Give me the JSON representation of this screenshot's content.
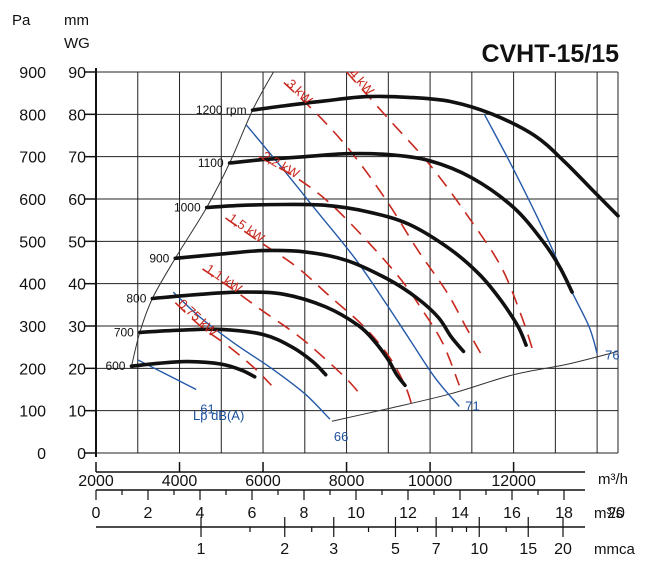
{
  "chart_data": {
    "type": "line",
    "title": "CVHT-15/15",
    "ylabel_left": "Pa",
    "ylabel_right_top": "mm",
    "ylabel_right_bottom": "WG",
    "x_primary": {
      "unit": "m³/h",
      "range": [
        2000,
        14500
      ],
      "ticks": [
        "2000",
        "4000",
        "6000",
        "8000",
        "10000",
        "12000"
      ]
    },
    "x_secondary": {
      "unit": "m³/s",
      "ticks": [
        "0",
        "2",
        "4",
        "6",
        "8",
        "10",
        "12",
        "14",
        "16",
        "18",
        "20"
      ]
    },
    "x_tertiary": {
      "unit": "mmca",
      "ticks": [
        "1",
        "2",
        "3",
        "5",
        "7",
        "10",
        "15",
        "20"
      ]
    },
    "y_pa": {
      "range": [
        0,
        900
      ],
      "ticks": [
        "0",
        "100",
        "200",
        "300",
        "400",
        "500",
        "600",
        "700",
        "800",
        "900"
      ]
    },
    "y_mmwg": {
      "ticks": [
        "0",
        "10",
        "20",
        "30",
        "40",
        "50",
        "60",
        "70",
        "80",
        "90"
      ]
    },
    "grid": true,
    "speed_curves": [
      {
        "label": "600",
        "points": [
          [
            2850,
            205
          ],
          [
            3500,
            212
          ],
          [
            4200,
            216
          ],
          [
            5000,
            210
          ],
          [
            5500,
            195
          ],
          [
            5800,
            180
          ]
        ]
      },
      {
        "label": "700",
        "points": [
          [
            3050,
            285
          ],
          [
            4000,
            290
          ],
          [
            5000,
            292
          ],
          [
            6000,
            280
          ],
          [
            6700,
            250
          ],
          [
            7200,
            215
          ],
          [
            7500,
            185
          ]
        ]
      },
      {
        "label": "800",
        "points": [
          [
            3350,
            365
          ],
          [
            4500,
            375
          ],
          [
            5500,
            380
          ],
          [
            6500,
            375
          ],
          [
            7500,
            345
          ],
          [
            8300,
            300
          ],
          [
            8700,
            260
          ],
          [
            9000,
            220
          ],
          [
            9200,
            185
          ],
          [
            9400,
            160
          ]
        ]
      },
      {
        "label": "900",
        "points": [
          [
            3900,
            460
          ],
          [
            5000,
            470
          ],
          [
            6000,
            478
          ],
          [
            7000,
            475
          ],
          [
            8000,
            455
          ],
          [
            9000,
            410
          ],
          [
            9700,
            365
          ],
          [
            10200,
            320
          ],
          [
            10500,
            275
          ],
          [
            10800,
            240
          ]
        ]
      },
      {
        "label": "1000",
        "points": [
          [
            4650,
            580
          ],
          [
            5500,
            585
          ],
          [
            6500,
            587
          ],
          [
            7500,
            585
          ],
          [
            8500,
            570
          ],
          [
            9500,
            540
          ],
          [
            10500,
            480
          ],
          [
            11200,
            420
          ],
          [
            11700,
            360
          ],
          [
            12100,
            300
          ],
          [
            12300,
            255
          ]
        ]
      },
      {
        "label": "1100",
        "points": [
          [
            5200,
            685
          ],
          [
            6000,
            693
          ],
          [
            7000,
            700
          ],
          [
            8000,
            707
          ],
          [
            9000,
            705
          ],
          [
            10000,
            690
          ],
          [
            11000,
            650
          ],
          [
            12000,
            580
          ],
          [
            12700,
            500
          ],
          [
            13100,
            440
          ],
          [
            13400,
            380
          ]
        ]
      },
      {
        "label": "1200 rpm",
        "points": [
          [
            5750,
            810
          ],
          [
            6500,
            820
          ],
          [
            7500,
            832
          ],
          [
            8500,
            842
          ],
          [
            9500,
            840
          ],
          [
            10500,
            830
          ],
          [
            11500,
            800
          ],
          [
            12500,
            750
          ],
          [
            13200,
            690
          ],
          [
            13900,
            620
          ],
          [
            14500,
            560
          ]
        ]
      }
    ],
    "power_lines": [
      {
        "label": "0.75 kW",
        "points": [
          [
            3900,
            355
          ],
          [
            4500,
            300
          ],
          [
            5200,
            250
          ],
          [
            5800,
            200
          ],
          [
            6200,
            160
          ]
        ]
      },
      {
        "label": "1,1 kW",
        "points": [
          [
            4550,
            435
          ],
          [
            5300,
            385
          ],
          [
            6000,
            335
          ],
          [
            6800,
            280
          ],
          [
            7400,
            230
          ],
          [
            8000,
            175
          ],
          [
            8400,
            130
          ]
        ]
      },
      {
        "label": "1,5 kW",
        "points": [
          [
            5100,
            555
          ],
          [
            5900,
            500
          ],
          [
            6800,
            440
          ],
          [
            7600,
            370
          ],
          [
            8400,
            300
          ],
          [
            9000,
            230
          ],
          [
            9400,
            160
          ],
          [
            9600,
            100
          ]
        ]
      },
      {
        "label": "2,2 kW",
        "points": [
          [
            5900,
            700
          ],
          [
            6800,
            650
          ],
          [
            7600,
            590
          ],
          [
            8500,
            500
          ],
          [
            9300,
            410
          ],
          [
            9800,
            340
          ],
          [
            10300,
            260
          ],
          [
            10700,
            160
          ]
        ]
      },
      {
        "label": "3 kW",
        "points": [
          [
            6500,
            875
          ],
          [
            7400,
            790
          ],
          [
            8200,
            700
          ],
          [
            9000,
            590
          ],
          [
            9700,
            480
          ],
          [
            10400,
            380
          ],
          [
            10900,
            290
          ],
          [
            11300,
            220
          ]
        ]
      },
      {
        "label": "4 kW",
        "points": [
          [
            8000,
            900
          ],
          [
            9000,
            790
          ],
          [
            10000,
            680
          ],
          [
            10900,
            560
          ],
          [
            11700,
            440
          ],
          [
            12200,
            320
          ],
          [
            12500,
            230
          ]
        ]
      }
    ],
    "noise_lines": [
      {
        "label": "61",
        "points": [
          [
            3000,
            220
          ],
          [
            3500,
            195
          ],
          [
            4000,
            170
          ],
          [
            4400,
            150
          ]
        ]
      },
      {
        "label": "66",
        "points": [
          [
            3850,
            380
          ],
          [
            4500,
            320
          ],
          [
            5300,
            260
          ],
          [
            6200,
            200
          ],
          [
            7000,
            140
          ],
          [
            7600,
            80
          ]
        ]
      },
      {
        "label": "71",
        "points": [
          [
            5600,
            775
          ],
          [
            6400,
            680
          ],
          [
            7300,
            570
          ],
          [
            8200,
            460
          ],
          [
            8900,
            360
          ],
          [
            9500,
            270
          ],
          [
            10100,
            180
          ],
          [
            10700,
            110
          ]
        ]
      },
      {
        "label": "76",
        "points": [
          [
            11300,
            800
          ],
          [
            12000,
            670
          ],
          [
            12700,
            530
          ],
          [
            13300,
            400
          ],
          [
            13800,
            300
          ],
          [
            14000,
            235
          ]
        ]
      }
    ],
    "boundary_left": [
      [
        2850,
        205
      ],
      [
        3050,
        285
      ],
      [
        3350,
        365
      ],
      [
        3900,
        460
      ],
      [
        4650,
        580
      ],
      [
        5200,
        685
      ],
      [
        5750,
        810
      ],
      [
        6250,
        900
      ]
    ],
    "boundary_bottom": [
      [
        7650,
        75
      ],
      [
        9000,
        105
      ],
      [
        10500,
        140
      ],
      [
        12000,
        185
      ],
      [
        13300,
        210
      ],
      [
        14500,
        240
      ]
    ],
    "noise_label": "Lp  dB(A)"
  }
}
